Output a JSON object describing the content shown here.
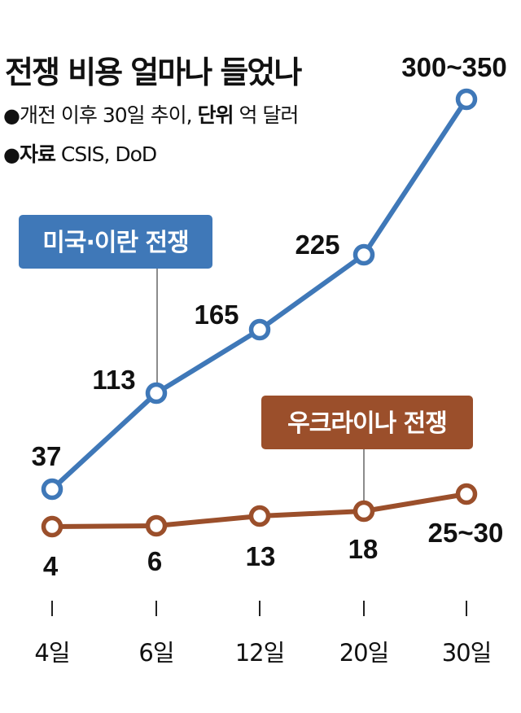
{
  "header": {
    "title": "전쟁 비용 얼마나 들었나",
    "bullet": "●",
    "subtitle_pre": "개전 이후 30일 추이, ",
    "unit_label": "단위",
    "unit_value": " 억 달러",
    "source_label": "자료",
    "source_value": " CSIS, DoD"
  },
  "chart_data": {
    "type": "line",
    "categories": [
      "4일",
      "6일",
      "12일",
      "20일",
      "30일"
    ],
    "series": [
      {
        "name": "미국·이란 전쟁",
        "color": "#3f78b8",
        "values": [
          37,
          113,
          165,
          225,
          325
        ],
        "labels": [
          "37",
          "113",
          "165",
          "225",
          "300~350"
        ]
      },
      {
        "name": "우크라이나 전쟁",
        "color": "#9b4f2b",
        "values": [
          4,
          6,
          13,
          18,
          27.5
        ],
        "labels": [
          "4",
          "6",
          "13",
          "18",
          "25~30"
        ]
      }
    ],
    "grid": false,
    "legend": "inline labels"
  }
}
